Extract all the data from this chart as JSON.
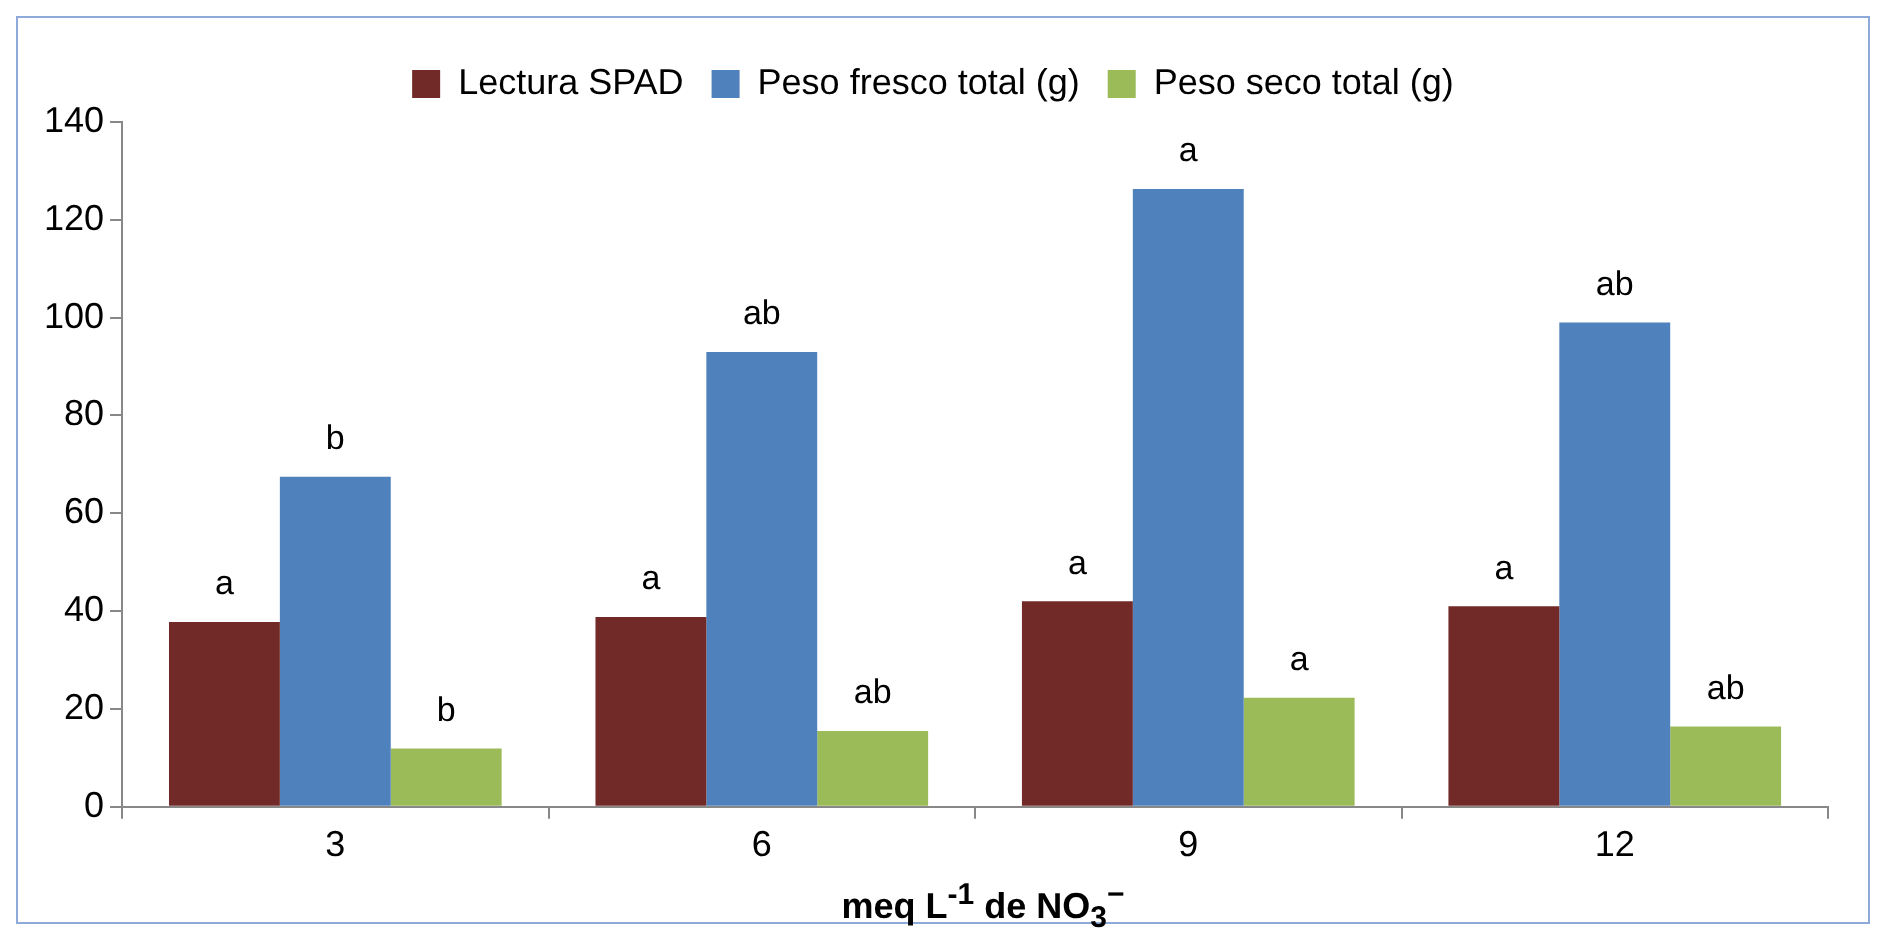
{
  "chart_data": {
    "type": "bar",
    "xlabel": "meq L$^{-1}$ de NO$_{3}$$^{−}$",
    "categories": [
      "3",
      "6",
      "9",
      "12"
    ],
    "series": [
      {
        "name": "Lectura SPAD",
        "color": "#722a28",
        "values": [
          37.8,
          38.8,
          42.0,
          41.0
        ],
        "value_labels": [
          "a",
          "a",
          "a",
          "a"
        ]
      },
      {
        "name": "Peso fresco total (g)",
        "color": "#4f81bd",
        "values": [
          67.5,
          93.0,
          126.3,
          99.0
        ],
        "value_labels": [
          "b",
          "ab",
          "a",
          "ab"
        ]
      },
      {
        "name": "Peso seco total (g)",
        "color": "#9bbb59",
        "values": [
          11.9,
          15.5,
          22.3,
          16.4
        ],
        "value_labels": [
          "b",
          "ab",
          "a",
          "ab"
        ]
      }
    ],
    "ylim": [
      0,
      140
    ],
    "yticks": [
      0,
      20,
      40,
      60,
      80,
      100,
      120,
      140
    ],
    "grid": false,
    "legend": "top"
  }
}
